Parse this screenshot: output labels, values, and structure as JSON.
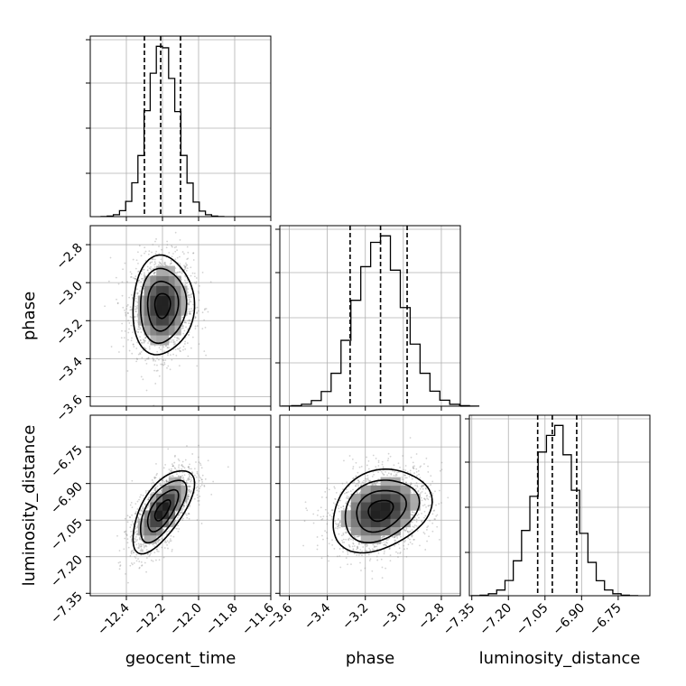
{
  "chart_data": {
    "type": "corner",
    "parameters": [
      "geocent_time",
      "phase",
      "luminosity_distance"
    ],
    "axes": {
      "geocent_time": {
        "range": [
          -12.6,
          -11.6
        ],
        "ticks": [
          -12.4,
          -12.2,
          -12.0,
          -11.8,
          -11.6
        ],
        "tick_labels": [
          "−12.4",
          "−12.2",
          "−12.0",
          "−11.8",
          "−11.6"
        ]
      },
      "phase": {
        "range": [
          -3.65,
          -2.7
        ],
        "ticks": [
          -3.6,
          -3.4,
          -3.2,
          -3.0,
          -2.8
        ],
        "tick_labels": [
          "−3.6",
          "−3.4",
          "−3.2",
          "−3.0",
          "−2.8"
        ]
      },
      "luminosity_distance": {
        "range": [
          -7.36,
          -6.62
        ],
        "ticks": [
          -7.35,
          -7.2,
          -7.05,
          -6.9,
          -6.75
        ],
        "tick_labels": [
          "−7.35",
          "−7.20",
          "−7.05",
          "−6.90",
          "−6.75"
        ]
      }
    },
    "marginals": {
      "geocent_time": {
        "quantiles": [
          -12.3,
          -12.21,
          -12.1
        ],
        "mean": -12.2,
        "sd": 0.085
      },
      "phase": {
        "quantiles": [
          -3.28,
          -3.12,
          -2.98
        ],
        "mean": -3.12,
        "sd": 0.13
      },
      "luminosity_distance": {
        "quantiles": [
          -7.08,
          -7.02,
          -6.92
        ],
        "mean": -7.01,
        "sd": 0.085
      }
    },
    "correlations": {
      "geocent_time|phase": 0.05,
      "geocent_time|luminosity_distance": 0.65,
      "phase|luminosity_distance": 0.25
    },
    "grid": true,
    "histogram_bins": 20,
    "contour_levels_sigma": [
      0.5,
      1.0,
      1.5,
      2.0
    ]
  },
  "colors": {
    "line": "#000000",
    "grid": "#b0b0b0",
    "point": "#808080"
  }
}
